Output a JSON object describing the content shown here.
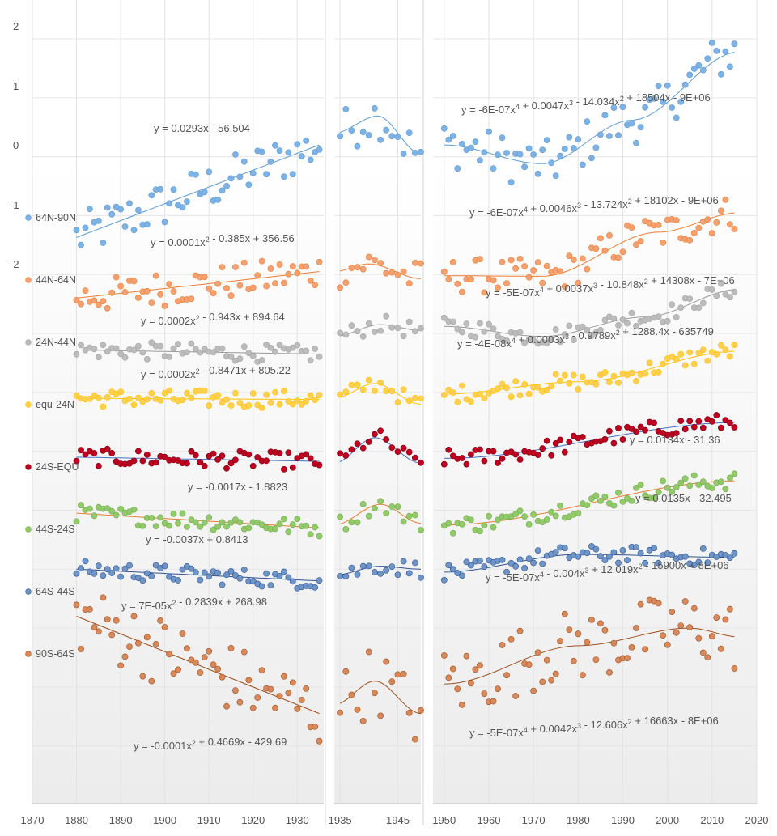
{
  "chart_data": {
    "type": "scatter",
    "title": "",
    "xlabel": "",
    "ylabel": "",
    "y_ticks": [
      "2",
      "1",
      "0",
      "-1",
      "-2"
    ],
    "panels": [
      {
        "name": "1870-1935",
        "xlim": [
          1870,
          1936
        ],
        "ticks": [
          "1870",
          "1880",
          "1890",
          "1900",
          "1910",
          "1920",
          "1930"
        ]
      },
      {
        "name": "1935-1949",
        "xlim": [
          1934,
          1949
        ],
        "ticks": [
          "1935",
          "1945"
        ]
      },
      {
        "name": "1950-2020",
        "xlim": [
          1947.5,
          2020
        ],
        "ticks": [
          "1950",
          "1960",
          "1970",
          "1980",
          "1990",
          "2000",
          "2010",
          "2020"
        ]
      }
    ],
    "ylim": [
      -10.98,
      2.22
    ],
    "series": [
      {
        "name": "64N-90N",
        "offset": 0,
        "color": "#7eb2e4",
        "stroke": "#5b9bd5",
        "line": "#5b9bd5",
        "amp": 0.4,
        "fits": [
          {
            "panel": 0,
            "y0": -1.37,
            "y1": 0.2,
            "eq": "y = 0.0293x - 56.504",
            "coeffs": [
              -56.504,
              0.0293
            ]
          },
          {
            "panel": 1,
            "pts": [
              [
                1934,
                0.4
              ],
              [
                1941.5,
                0.69
              ],
              [
                1949,
                0.05
              ]
            ],
            "eq": ""
          },
          {
            "panel": 2,
            "pts": [
              [
                1950,
                0.2
              ],
              [
                1972,
                -0.12
              ],
              [
                1992,
                0.62
              ],
              [
                2016,
                1.78
              ]
            ],
            "eq": "y = -6E-07x4 + 0.0047x3 - 14.034x2 + 18504x - 9E+06"
          }
        ]
      },
      {
        "name": "44N-64N",
        "offset": -2.3,
        "color": "#f4a070",
        "stroke": "#ed7d31",
        "line": "#ed7d31",
        "amp": 0.3,
        "fits": [
          {
            "panel": 0,
            "y0": -2.4,
            "y1": -1.95,
            "eq": "y = 0.0001x2 - 0.385x + 356.56"
          },
          {
            "panel": 1,
            "pts": [
              [
                1934,
                -1.95
              ],
              [
                1940,
                -1.82
              ],
              [
                1949,
                -2.07
              ]
            ],
            "eq": ""
          },
          {
            "panel": 2,
            "pts": [
              [
                1950,
                -2.02
              ],
              [
                1972,
                -2.03
              ],
              [
                1998,
                -1.28
              ],
              [
                2016,
                -0.95
              ]
            ],
            "eq": "y = -6E-07x4 + 0.0046x3 - 13.724x2 + 18102x - 9E+06"
          }
        ]
      },
      {
        "name": "24N-44N",
        "offset": -3.35,
        "color": "#bcbcbc",
        "stroke": "#a5a5a5",
        "line": "#999999",
        "amp": 0.15,
        "fits": [
          {
            "panel": 0,
            "y0": -3.28,
            "y1": -3.35,
            "eq": "y = 0.0002x2 - 0.943x + 894.64"
          },
          {
            "panel": 1,
            "pts": [
              [
                1934,
                -3.05
              ],
              [
                1942,
                -2.85
              ],
              [
                1949,
                -2.95
              ]
            ],
            "eq": ""
          },
          {
            "panel": 2,
            "pts": [
              [
                1950,
                -2.88
              ],
              [
                1972,
                -3.05
              ],
              [
                1995,
                -2.72
              ],
              [
                2016,
                -2.25
              ]
            ],
            "eq": "y = -5E-07x4 + 0.0037x3 - 10.848x2 + 14308x - 7E+06"
          }
        ]
      },
      {
        "name": "equ-24N",
        "offset": -4.3,
        "color": "#ffd050",
        "stroke": "#ffc000",
        "line": "#ffc000",
        "amp": 0.15,
        "fits": [
          {
            "panel": 0,
            "y0": -4.1,
            "y1": -4.12,
            "eq": "y = 0.0002x2 - 0.8471x + 805.22"
          },
          {
            "panel": 1,
            "pts": [
              [
                1934,
                -4.1
              ],
              [
                1941,
                -3.85
              ],
              [
                1949,
                -4.2
              ]
            ],
            "eq": ""
          },
          {
            "panel": 2,
            "pts": [
              [
                1950,
                -4.03
              ],
              [
                1980,
                -3.82
              ],
              [
                2016,
                -3.3
              ]
            ],
            "eq": "y = -4E-08x4 + 0.0003x3 - 0.9789x2 + 1288.4x - 635749"
          }
        ]
      },
      {
        "name": "24S-EQU",
        "offset": -5.35,
        "color": "#c00020",
        "stroke": "#7a0010",
        "line": "#4472c4",
        "amp": 0.15,
        "fits": [
          {
            "panel": 0,
            "y0": -5.1,
            "y1": -5.17,
            "eq": "y = -0.0017x - 1.8823"
          },
          {
            "panel": 1,
            "pts": [
              [
                1934,
                -5.2
              ],
              [
                1941,
                -4.77
              ],
              [
                1949,
                -5.2
              ]
            ],
            "eq": ""
          },
          {
            "panel": 2,
            "pts": [
              [
                1950,
                -5.12
              ],
              [
                2016,
                -4.51
              ]
            ],
            "eq": "y = 0.0134x - 31.36"
          }
        ]
      },
      {
        "name": "44S-24S",
        "offset": -6.35,
        "color": "#92c96a",
        "stroke": "#70ad47",
        "line": "#ed7d31",
        "amp": 0.15,
        "fits": [
          {
            "panel": 0,
            "y0": -6.05,
            "y1": -6.3,
            "eq": "y = -0.0037x + 0.8413"
          },
          {
            "panel": 1,
            "pts": [
              [
                1934,
                -6.25
              ],
              [
                1942,
                -5.9
              ],
              [
                1949,
                -6.22
              ]
            ],
            "eq": ""
          },
          {
            "panel": 2,
            "pts": [
              [
                1950,
                -6.25
              ],
              [
                2016,
                -5.5
              ]
            ],
            "eq": "y = 0.0135x - 32.495"
          }
        ]
      },
      {
        "name": "64S-44S",
        "offset": -7.4,
        "color": "#6f94c6",
        "stroke": "#2e5597",
        "line": "#2e5597",
        "amp": 0.15,
        "fits": [
          {
            "panel": 0,
            "y0": -7.0,
            "y1": -7.2,
            "eq": "y = 7E-05x2 - 0.2839x + 268.98"
          },
          {
            "panel": 1,
            "pts": [
              [
                1934,
                -7.1
              ],
              [
                1942,
                -6.95
              ],
              [
                1949,
                -7.0
              ]
            ],
            "eq": ""
          },
          {
            "panel": 2,
            "pts": [
              [
                1950,
                -7.05
              ],
              [
                1980,
                -6.75
              ],
              [
                2016,
                -6.8
              ]
            ],
            "eq": "y = -5E-07x4 - 0.004x3 + 12.019x2 - 15900x + 8E+06"
          }
        ]
      },
      {
        "name": "90S-64S",
        "offset": -8.5,
        "color": "#d9885a",
        "stroke": "#a0501e",
        "line": "#a0501e",
        "amp": 0.6,
        "fits": [
          {
            "panel": 0,
            "y0": -7.8,
            "y1": -9.45,
            "eq": "y = -0.0001x2 + 0.4669x - 429.69"
          },
          {
            "panel": 1,
            "pts": [
              [
                1934,
                -9.3
              ],
              [
                1941,
                -8.9
              ],
              [
                1949,
                -9.45
              ]
            ],
            "eq": ""
          },
          {
            "panel": 2,
            "pts": [
              [
                1950,
                -8.95
              ],
              [
                1980,
                -8.3
              ],
              [
                2005,
                -8.0
              ],
              [
                2016,
                -8.15
              ]
            ],
            "eq": "y = -5E-07x4 + 0.0042x3 - 12.606x2 + 16663x - 8E+06"
          }
        ]
      }
    ]
  }
}
